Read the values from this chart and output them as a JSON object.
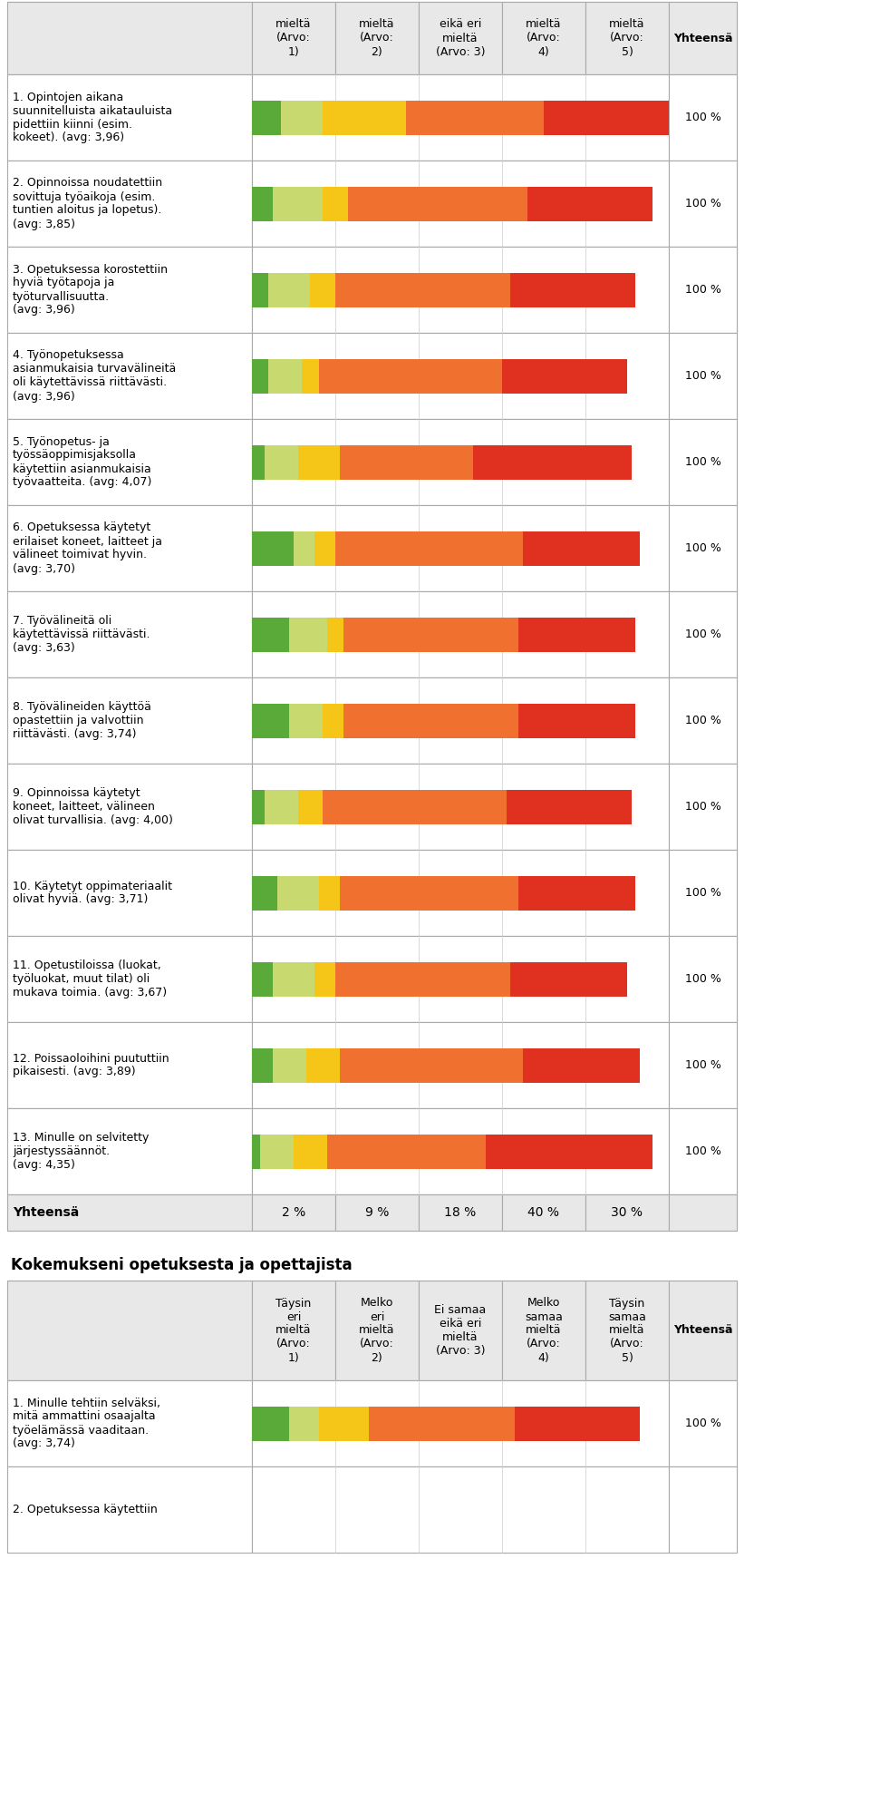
{
  "title1": "Kokemukseni opetuksesta ja opettajista",
  "header_cols1": [
    "mieltä\n(Arvo:\n1)",
    "mieltä\n(Arvo:\n2)",
    "eikä eri\nmieltä\n(Arvo: 3)",
    "mieltä\n(Arvo:\n4)",
    "mieltä\n(Arvo:\n5)",
    "Yhteensä"
  ],
  "header_cols2": [
    "Täysin\neri\nmieltä\n(Arvo:\n1)",
    "Melko\neri\nmieltä\n(Arvo:\n2)",
    "Ei samaa\neikä eri\nmieltä\n(Arvo: 3)",
    "Melko\nsamaa\nmieltä\n(Arvo:\n4)",
    "Täysin\nsamaa\nmieltä\n(Arvo:\n5)",
    "Yhteensä"
  ],
  "colors": [
    "#5aaa3a",
    "#c8d96f",
    "#f5c518",
    "#f07030",
    "#e03020"
  ],
  "footer_pcts": [
    "2 %",
    "9 %",
    "18 %",
    "40 %",
    "30 %"
  ],
  "section1_rows": [
    {
      "label": "1. Opintojen aikana\nsuunnitelluista aikatauluista\npidettiin kiinni (esim.\nkokeet). (avg: 3,96)",
      "values": [
        7,
        10,
        20,
        33,
        30
      ]
    },
    {
      "label": "2. Opinnoissa noudatettiin\nsovittuja työaikoja (esim.\ntuntien aloitus ja lopetus).\n(avg: 3,85)",
      "values": [
        5,
        12,
        6,
        43,
        30
      ]
    },
    {
      "label": "3. Opetuksessa korostettiin\nhyviä työtapoja ja\ntyöturvallisuutta.\n(avg: 3,96)",
      "values": [
        4,
        10,
        6,
        42,
        30
      ]
    },
    {
      "label": "4. Työnopetuksessa\nasianmukaisia turvavälineitä\noli käytettävissä riittävästi.\n(avg: 3,96)",
      "values": [
        4,
        8,
        4,
        44,
        30
      ]
    },
    {
      "label": "5. Työnopetus- ja\ntyössäoppimisjaksolla\nkäytettiin asianmukaisia\ntyövaatteita. (avg: 4,07)",
      "values": [
        3,
        8,
        10,
        32,
        38
      ]
    },
    {
      "label": "6. Opetuksessa käytetyt\nerilaiset koneet, laitteet ja\nvälineet toimivat hyvin.\n(avg: 3,70)",
      "values": [
        10,
        5,
        5,
        45,
        28
      ]
    },
    {
      "label": "7. Työvälineitä oli\nkäytettävissä riittävästi.\n(avg: 3,63)",
      "values": [
        9,
        9,
        4,
        42,
        28
      ]
    },
    {
      "label": "8. Työvälineiden käyttöä\nopastettiin ja valvottiin\nriittävästi. (avg: 3,74)",
      "values": [
        9,
        8,
        5,
        42,
        28
      ]
    },
    {
      "label": "9. Opinnoissa käytetyt\nkoneet, laitteet, välineen\nolivat turvallisia. (avg: 4,00)",
      "values": [
        3,
        8,
        6,
        44,
        30
      ]
    },
    {
      "label": "10. Käytetyt oppimateriaalit\nolivat hyviä. (avg: 3,71)",
      "values": [
        6,
        10,
        5,
        43,
        28
      ]
    },
    {
      "label": "11. Opetustiloissa (luokat,\ntyöluokat, muut tilat) oli\nmukava toimia. (avg: 3,67)",
      "values": [
        5,
        10,
        5,
        42,
        28
      ]
    },
    {
      "label": "12. Poissaoloihini puututtiin\npikaisesti. (avg: 3,89)",
      "values": [
        5,
        8,
        8,
        44,
        28
      ]
    },
    {
      "label": "13. Minulle on selvitetty\njärjestyssäännöt.\n(avg: 4,35)",
      "values": [
        2,
        8,
        8,
        38,
        40
      ]
    }
  ],
  "section2_rows": [
    {
      "label": "1. Minulle tehtiin selväksi,\nmitä ammattini osaajalta\ntyöelämässä vaaditaan.\n(avg: 3,74)",
      "values": [
        9,
        7,
        12,
        35,
        30
      ]
    },
    {
      "label": "2. Opetuksessa käytettiin",
      "values": []
    }
  ],
  "yhteensa": "100 %",
  "bg_color": "#ffffff",
  "header_bg": "#e8e8e8",
  "border_color": "#aaaaaa",
  "label_fontsize": 9,
  "header_fontsize": 9
}
